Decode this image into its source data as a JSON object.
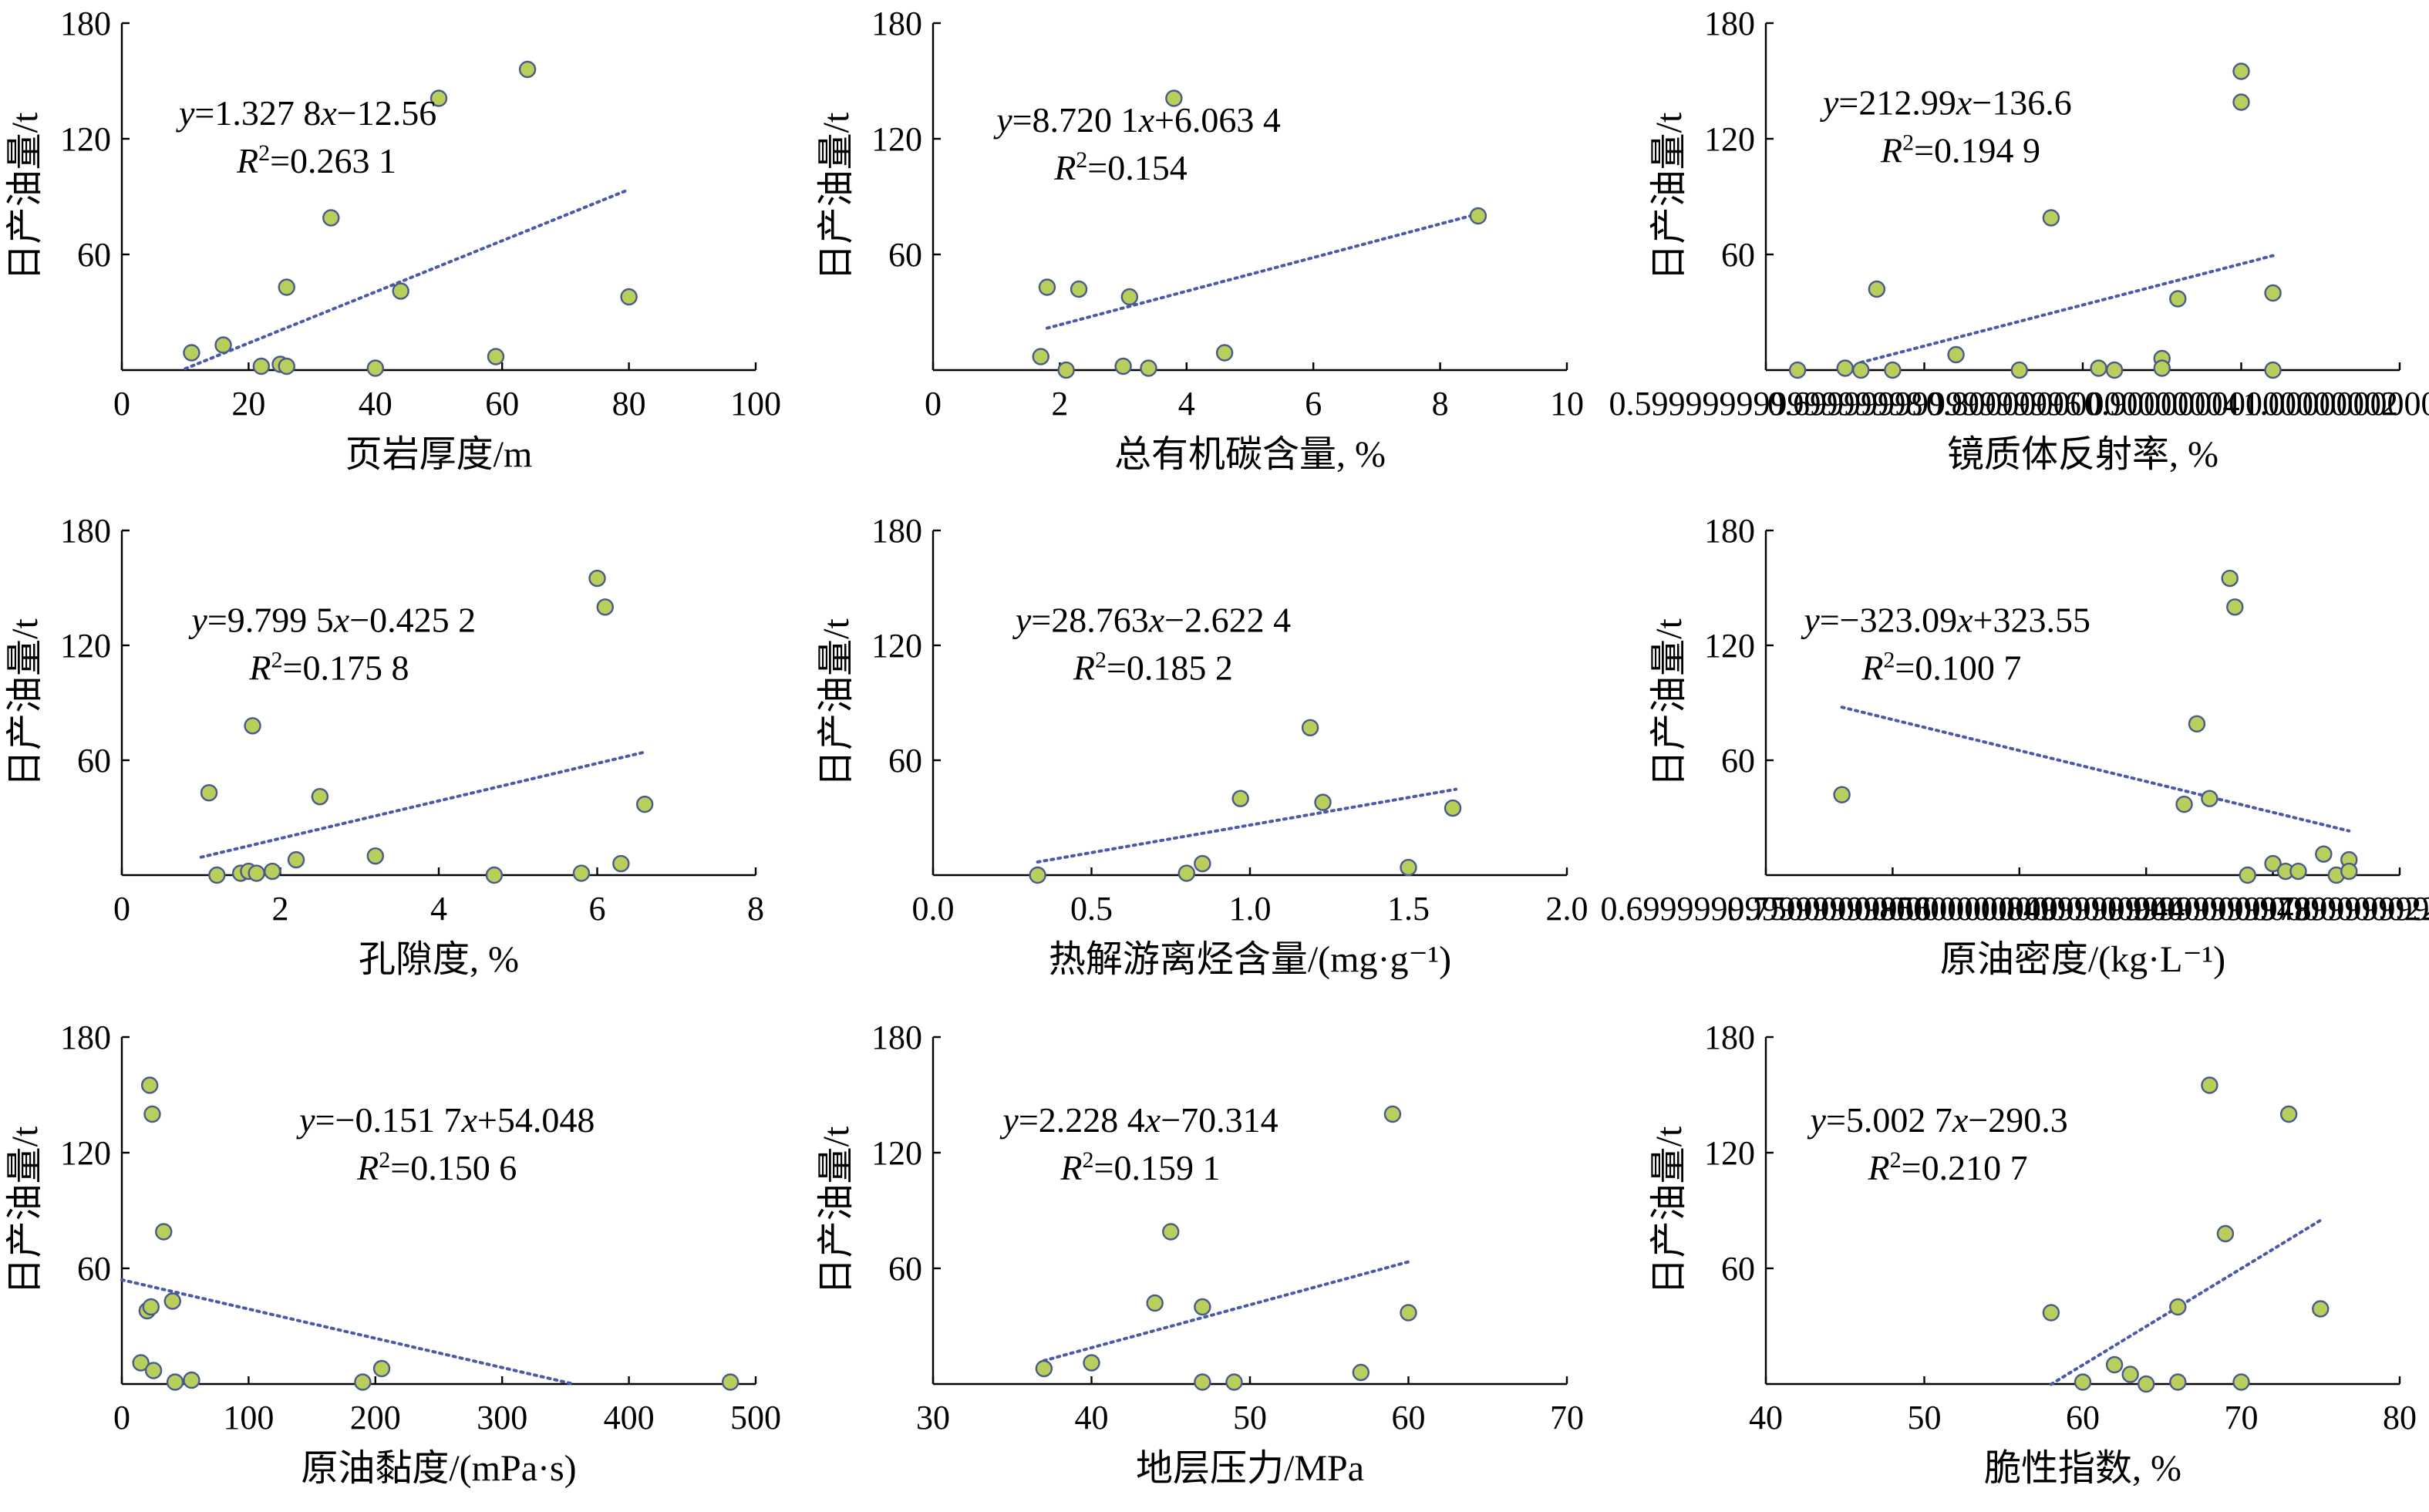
{
  "chart_data": [
    {
      "type": "scatter",
      "ylabel": "日产油量/t",
      "xlabel": "页岩厚度/m",
      "xlim": [
        0,
        100
      ],
      "xticks": [
        0,
        20,
        40,
        60,
        80,
        100
      ],
      "ylim": [
        0,
        180
      ],
      "yticks": [
        60,
        120,
        180
      ],
      "equation": "y=1.327 8x−12.56",
      "r2": "R²=0.263 1",
      "trend": {
        "slope": 1.3278,
        "intercept": -12.56,
        "x_range": [
          10,
          80
        ]
      },
      "points": [
        [
          11,
          9
        ],
        [
          16,
          13
        ],
        [
          22,
          2
        ],
        [
          25,
          3
        ],
        [
          26,
          2
        ],
        [
          26,
          43
        ],
        [
          33,
          79
        ],
        [
          40,
          1
        ],
        [
          44,
          41
        ],
        [
          50,
          141
        ],
        [
          59,
          7
        ],
        [
          64,
          156
        ],
        [
          80,
          38
        ]
      ]
    },
    {
      "type": "scatter",
      "ylabel": "日产油量/t",
      "xlabel": "总有机碳含量, %",
      "xlim": [
        0,
        10
      ],
      "xticks": [
        0,
        2,
        4,
        6,
        8,
        10
      ],
      "ylim": [
        0,
        180
      ],
      "yticks": [
        60,
        120,
        180
      ],
      "equation": "y=8.720 1x+6.063 4",
      "r2": "R²=0.154",
      "trend": {
        "slope": 8.7201,
        "intercept": 6.0634,
        "x_range": [
          1.8,
          8.6
        ]
      },
      "points": [
        [
          1.7,
          7
        ],
        [
          1.8,
          43
        ],
        [
          2.1,
          0
        ],
        [
          2.3,
          42
        ],
        [
          3.0,
          2
        ],
        [
          3.1,
          38
        ],
        [
          3.4,
          1
        ],
        [
          3.8,
          141
        ],
        [
          4.6,
          9
        ],
        [
          8.6,
          80
        ]
      ]
    },
    {
      "type": "scatter",
      "ylabel": "日产油量/t",
      "xlabel": "镜质体反射率, %",
      "xlim": [
        0.6,
        1.0
      ],
      "xticks": [
        0.6,
        0.7,
        0.8,
        0.9,
        1.0
      ],
      "ylim": [
        0,
        180
      ],
      "yticks": [
        60,
        120,
        180
      ],
      "equation": "y=212.99x−136.6",
      "r2": "R²=0.194 9",
      "trend": {
        "slope": 212.99,
        "intercept": -136.6,
        "x_range": [
          0.66,
          0.92
        ]
      },
      "points": [
        [
          0.62,
          0
        ],
        [
          0.65,
          1
        ],
        [
          0.66,
          0
        ],
        [
          0.67,
          42
        ],
        [
          0.68,
          0
        ],
        [
          0.72,
          8
        ],
        [
          0.76,
          0
        ],
        [
          0.78,
          79
        ],
        [
          0.81,
          1
        ],
        [
          0.82,
          0
        ],
        [
          0.85,
          6
        ],
        [
          0.85,
          1
        ],
        [
          0.86,
          37
        ],
        [
          0.9,
          155
        ],
        [
          0.9,
          139
        ],
        [
          0.92,
          40
        ],
        [
          0.92,
          0
        ]
      ]
    },
    {
      "type": "scatter",
      "ylabel": "日产油量/t",
      "xlabel": "孔隙度, %",
      "xlim": [
        0,
        8
      ],
      "xticks": [
        0,
        2,
        4,
        6,
        8
      ],
      "ylim": [
        0,
        180
      ],
      "yticks": [
        60,
        120,
        180
      ],
      "equation": "y=9.799 5x−0.425 2",
      "r2": "R²=0.175 8",
      "trend": {
        "slope": 9.7995,
        "intercept": -0.4252,
        "x_range": [
          1.0,
          6.6
        ]
      },
      "points": [
        [
          1.1,
          43
        ],
        [
          1.2,
          0
        ],
        [
          1.5,
          1
        ],
        [
          1.6,
          2
        ],
        [
          1.65,
          78
        ],
        [
          1.7,
          1
        ],
        [
          1.9,
          2
        ],
        [
          2.2,
          8
        ],
        [
          2.5,
          41
        ],
        [
          3.2,
          10
        ],
        [
          4.7,
          0
        ],
        [
          5.8,
          1
        ],
        [
          6.0,
          155
        ],
        [
          6.1,
          140
        ],
        [
          6.3,
          6
        ],
        [
          6.6,
          37
        ]
      ]
    },
    {
      "type": "scatter",
      "ylabel": "日产油量/t",
      "xlabel": "热解游离烃含量/(mg·g⁻¹)",
      "xlim": [
        0,
        2.0
      ],
      "xticks": [
        0,
        0.5,
        1.0,
        1.5,
        2.0
      ],
      "ylim": [
        0,
        180
      ],
      "yticks": [
        60,
        120,
        180
      ],
      "equation": "y=28.763x−2.622 4",
      "r2": "R²=0.185 2",
      "trend": {
        "slope": 28.763,
        "intercept": -2.6224,
        "x_range": [
          0.33,
          1.65
        ]
      },
      "points": [
        [
          0.33,
          0
        ],
        [
          0.8,
          1
        ],
        [
          0.85,
          6
        ],
        [
          0.97,
          40
        ],
        [
          1.19,
          77
        ],
        [
          1.23,
          38
        ],
        [
          1.5,
          4
        ],
        [
          1.64,
          35
        ]
      ]
    },
    {
      "type": "scatter",
      "ylabel": "日产油量/t",
      "xlabel": "原油密度/(kg·L⁻¹)",
      "xlim": [
        0.7,
        0.95
      ],
      "xticks": [
        0.7,
        0.75,
        0.8,
        0.85,
        0.9,
        0.95
      ],
      "ylim": [
        0,
        180
      ],
      "yticks": [
        60,
        120,
        180
      ],
      "equation": "y=−323.09x+323.55",
      "r2": "R²=0.100 7",
      "trend": {
        "slope": -323.09,
        "intercept": 323.55,
        "x_range": [
          0.73,
          0.93
        ]
      },
      "points": [
        [
          0.73,
          42
        ],
        [
          0.865,
          37
        ],
        [
          0.87,
          79
        ],
        [
          0.875,
          40
        ],
        [
          0.883,
          155
        ],
        [
          0.885,
          140
        ],
        [
          0.89,
          0
        ],
        [
          0.9,
          6
        ],
        [
          0.905,
          2
        ],
        [
          0.91,
          2
        ],
        [
          0.92,
          11
        ],
        [
          0.925,
          0
        ],
        [
          0.93,
          8
        ],
        [
          0.93,
          2
        ]
      ]
    },
    {
      "type": "scatter",
      "ylabel": "日产油量/t",
      "xlabel": "原油黏度/(mPa·s)",
      "xlim": [
        0,
        500
      ],
      "xticks": [
        0,
        100,
        200,
        300,
        400,
        500
      ],
      "ylim": [
        0,
        180
      ],
      "yticks": [
        60,
        120,
        180
      ],
      "equation": "y=−0.151 7x+54.048",
      "r2": "R²=0.150 6",
      "trend": {
        "slope": -0.1517,
        "intercept": 54.048,
        "x_range": [
          0,
          355
        ]
      },
      "points": [
        [
          15,
          11
        ],
        [
          20,
          38
        ],
        [
          23,
          40
        ],
        [
          22,
          155
        ],
        [
          24,
          140
        ],
        [
          25,
          7
        ],
        [
          33,
          79
        ],
        [
          40,
          43
        ],
        [
          42,
          1
        ],
        [
          55,
          2
        ],
        [
          190,
          1
        ],
        [
          205,
          8
        ],
        [
          480,
          1
        ]
      ]
    },
    {
      "type": "scatter",
      "ylabel": "日产油量/t",
      "xlabel": "地层压力/MPa",
      "xlim": [
        30,
        70
      ],
      "xticks": [
        30,
        40,
        50,
        60,
        70
      ],
      "ylim": [
        0,
        180
      ],
      "yticks": [
        60,
        120,
        180
      ],
      "equation": "y=2.228 4x−70.314",
      "r2": "R²=0.159 1",
      "trend": {
        "slope": 2.2284,
        "intercept": -70.314,
        "x_range": [
          37,
          60
        ]
      },
      "points": [
        [
          37,
          8
        ],
        [
          40,
          11
        ],
        [
          44,
          42
        ],
        [
          45,
          79
        ],
        [
          47,
          1
        ],
        [
          47,
          40
        ],
        [
          49,
          1
        ],
        [
          57,
          6
        ],
        [
          59,
          140
        ],
        [
          60,
          37
        ]
      ]
    },
    {
      "type": "scatter",
      "ylabel": "日产油量/t",
      "xlabel": "脆性指数, %",
      "xlim": [
        40,
        80
      ],
      "xticks": [
        40,
        50,
        60,
        70,
        80
      ],
      "ylim": [
        0,
        180
      ],
      "yticks": [
        60,
        120,
        180
      ],
      "equation": "y=5.002 7x−290.3",
      "r2": "R²=0.210 7",
      "trend": {
        "slope": 5.0027,
        "intercept": -290.3,
        "x_range": [
          58,
          75
        ]
      },
      "points": [
        [
          58,
          37
        ],
        [
          60,
          1
        ],
        [
          62,
          10
        ],
        [
          63,
          5
        ],
        [
          64,
          0
        ],
        [
          66,
          40
        ],
        [
          66,
          1
        ],
        [
          68,
          155
        ],
        [
          69,
          78
        ],
        [
          70,
          1
        ],
        [
          73,
          140
        ],
        [
          75,
          39
        ]
      ]
    }
  ]
}
